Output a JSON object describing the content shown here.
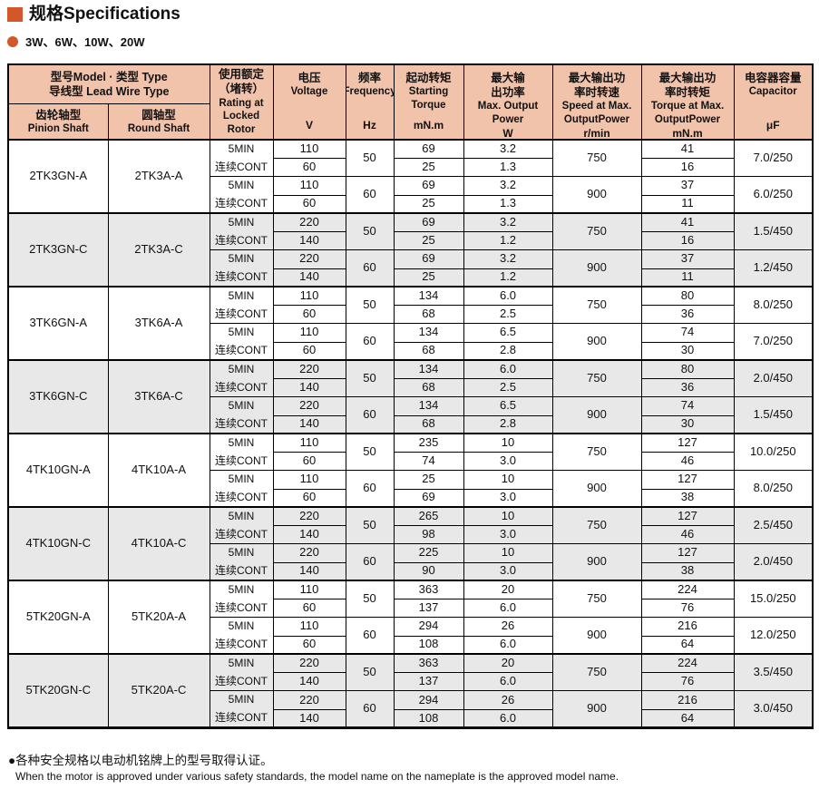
{
  "accent_color": "#d4572b",
  "header_bg_color": "#f2c3ab",
  "shaded_block_color": "#e8e8e8",
  "page": {
    "title_zh": "规格",
    "title_en": "Specifications",
    "wattages": "3W、6W、10W、20W"
  },
  "table": {
    "columns": {
      "model_group": {
        "line1": "型号Model · 类型 Type",
        "line2": "导线型 Lead Wire Type"
      },
      "pinion": {
        "zh": "齿轮轴型",
        "en": "Pinion Shaft"
      },
      "round": {
        "zh": "圆轴型",
        "en": "Round Shaft"
      },
      "rating": {
        "l1": "使用额定",
        "l2": "（堵转）",
        "l3": "Rating at",
        "l4": "Locked",
        "l5": "Rotor"
      },
      "voltage": {
        "zh": "电压",
        "en": "Voltage",
        "unit": "V"
      },
      "frequency": {
        "zh": "频率",
        "en": "Frequency",
        "unit": "Hz"
      },
      "starting_torque": {
        "zh": "起动转矩",
        "en1": "Starting",
        "en2": "Torque",
        "unit": "mN.m"
      },
      "max_output_power": {
        "zh1": "最大输",
        "zh2": "出功率",
        "en1": "Max. Output",
        "en2": "Power",
        "unit": "W"
      },
      "speed_at_max": {
        "zh1": "最大输出功",
        "zh2": "率时转速",
        "en1": "Speed at Max.",
        "en2": "OutputPower",
        "unit": "r/min"
      },
      "torque_at_max": {
        "zh1": "最大输出功",
        "zh2": "率时转矩",
        "en1": "Torque at Max.",
        "en2": "OutputPower",
        "unit": "mN.m"
      },
      "capacitor": {
        "zh": "电容器容量",
        "en": "Capacitor",
        "unit": "μF"
      }
    },
    "blocks": [
      {
        "pinion": "2TK3GN-A",
        "round": "2TK3A-A",
        "shaded": false,
        "halves": [
          {
            "rating": [
              "5MIN",
              "连续CONT"
            ],
            "frequency": "50",
            "speed": "750",
            "capacitor": "7.0/250",
            "rows": [
              {
                "voltage": "110",
                "starting_torque": "69",
                "max_output_power": "3.2",
                "torque_at_max": "41"
              },
              {
                "voltage": "60",
                "starting_torque": "25",
                "max_output_power": "1.3",
                "torque_at_max": "16"
              }
            ]
          },
          {
            "rating": [
              "5MIN",
              "连续CONT"
            ],
            "frequency": "60",
            "speed": "900",
            "capacitor": "6.0/250",
            "rows": [
              {
                "voltage": "110",
                "starting_torque": "69",
                "max_output_power": "3.2",
                "torque_at_max": "37"
              },
              {
                "voltage": "60",
                "starting_torque": "25",
                "max_output_power": "1.3",
                "torque_at_max": "11"
              }
            ]
          }
        ]
      },
      {
        "pinion": "2TK3GN-C",
        "round": "2TK3A-C",
        "shaded": true,
        "halves": [
          {
            "rating": [
              "5MIN",
              "连续CONT"
            ],
            "frequency": "50",
            "speed": "750",
            "capacitor": "1.5/450",
            "rows": [
              {
                "voltage": "220",
                "starting_torque": "69",
                "max_output_power": "3.2",
                "torque_at_max": "41"
              },
              {
                "voltage": "140",
                "starting_torque": "25",
                "max_output_power": "1.2",
                "torque_at_max": "16"
              }
            ]
          },
          {
            "rating": [
              "5MIN",
              "连续CONT"
            ],
            "frequency": "60",
            "speed": "900",
            "capacitor": "1.2/450",
            "rows": [
              {
                "voltage": "220",
                "starting_torque": "69",
                "max_output_power": "3.2",
                "torque_at_max": "37"
              },
              {
                "voltage": "140",
                "starting_torque": "25",
                "max_output_power": "1.2",
                "torque_at_max": "11"
              }
            ]
          }
        ]
      },
      {
        "pinion": "3TK6GN-A",
        "round": "3TK6A-A",
        "shaded": false,
        "halves": [
          {
            "rating": [
              "5MIN",
              "连续CONT"
            ],
            "frequency": "50",
            "speed": "750",
            "capacitor": "8.0/250",
            "rows": [
              {
                "voltage": "110",
                "starting_torque": "134",
                "max_output_power": "6.0",
                "torque_at_max": "80"
              },
              {
                "voltage": "60",
                "starting_torque": "68",
                "max_output_power": "2.5",
                "torque_at_max": "36"
              }
            ]
          },
          {
            "rating": [
              "5MIN",
              "连续CONT"
            ],
            "frequency": "60",
            "speed": "900",
            "capacitor": "7.0/250",
            "rows": [
              {
                "voltage": "110",
                "starting_torque": "134",
                "max_output_power": "6.5",
                "torque_at_max": "74"
              },
              {
                "voltage": "60",
                "starting_torque": "68",
                "max_output_power": "2.8",
                "torque_at_max": "30"
              }
            ]
          }
        ]
      },
      {
        "pinion": "3TK6GN-C",
        "round": "3TK6A-C",
        "shaded": true,
        "halves": [
          {
            "rating": [
              "5MIN",
              "连续CONT"
            ],
            "frequency": "50",
            "speed": "750",
            "capacitor": "2.0/450",
            "rows": [
              {
                "voltage": "220",
                "starting_torque": "134",
                "max_output_power": "6.0",
                "torque_at_max": "80"
              },
              {
                "voltage": "140",
                "starting_torque": "68",
                "max_output_power": "2.5",
                "torque_at_max": "36"
              }
            ]
          },
          {
            "rating": [
              "5MIN",
              "连续CONT"
            ],
            "frequency": "60",
            "speed": "900",
            "capacitor": "1.5/450",
            "rows": [
              {
                "voltage": "220",
                "starting_torque": "134",
                "max_output_power": "6.5",
                "torque_at_max": "74"
              },
              {
                "voltage": "140",
                "starting_torque": "68",
                "max_output_power": "2.8",
                "torque_at_max": "30"
              }
            ]
          }
        ]
      },
      {
        "pinion": "4TK10GN-A",
        "round": "4TK10A-A",
        "shaded": false,
        "halves": [
          {
            "rating": [
              "5MIN",
              "连续CONT"
            ],
            "frequency": "50",
            "speed": "750",
            "capacitor": "10.0/250",
            "rows": [
              {
                "voltage": "110",
                "starting_torque": "235",
                "max_output_power": "10",
                "torque_at_max": "127"
              },
              {
                "voltage": "60",
                "starting_torque": "74",
                "max_output_power": "3.0",
                "torque_at_max": "46"
              }
            ]
          },
          {
            "rating": [
              "5MIN",
              "连续CONT"
            ],
            "frequency": "60",
            "speed": "900",
            "capacitor": "8.0/250",
            "rows": [
              {
                "voltage": "110",
                "starting_torque": "25",
                "max_output_power": "10",
                "torque_at_max": "127"
              },
              {
                "voltage": "60",
                "starting_torque": "69",
                "max_output_power": "3.0",
                "torque_at_max": "38"
              }
            ]
          }
        ]
      },
      {
        "pinion": "4TK10GN-C",
        "round": "4TK10A-C",
        "shaded": true,
        "halves": [
          {
            "rating": [
              "5MIN",
              "连续CONT"
            ],
            "frequency": "50",
            "speed": "750",
            "capacitor": "2.5/450",
            "rows": [
              {
                "voltage": "220",
                "starting_torque": "265",
                "max_output_power": "10",
                "torque_at_max": "127"
              },
              {
                "voltage": "140",
                "starting_torque": "98",
                "max_output_power": "3.0",
                "torque_at_max": "46"
              }
            ]
          },
          {
            "rating": [
              "5MIN",
              "连续CONT"
            ],
            "frequency": "60",
            "speed": "900",
            "capacitor": "2.0/450",
            "rows": [
              {
                "voltage": "220",
                "starting_torque": "225",
                "max_output_power": "10",
                "torque_at_max": "127"
              },
              {
                "voltage": "140",
                "starting_torque": "90",
                "max_output_power": "3.0",
                "torque_at_max": "38"
              }
            ]
          }
        ]
      },
      {
        "pinion": "5TK20GN-A",
        "round": "5TK20A-A",
        "shaded": false,
        "halves": [
          {
            "rating": [
              "5MIN",
              "连续CONT"
            ],
            "frequency": "50",
            "speed": "750",
            "capacitor": "15.0/250",
            "rows": [
              {
                "voltage": "110",
                "starting_torque": "363",
                "max_output_power": "20",
                "torque_at_max": "224"
              },
              {
                "voltage": "60",
                "starting_torque": "137",
                "max_output_power": "6.0",
                "torque_at_max": "76"
              }
            ]
          },
          {
            "rating": [
              "5MIN",
              "连续CONT"
            ],
            "frequency": "60",
            "speed": "900",
            "capacitor": "12.0/250",
            "rows": [
              {
                "voltage": "110",
                "starting_torque": "294",
                "max_output_power": "26",
                "torque_at_max": "216"
              },
              {
                "voltage": "60",
                "starting_torque": "108",
                "max_output_power": "6.0",
                "torque_at_max": "64"
              }
            ]
          }
        ]
      },
      {
        "pinion": "5TK20GN-C",
        "round": "5TK20A-C",
        "shaded": true,
        "halves": [
          {
            "rating": [
              "5MIN",
              "连续CONT"
            ],
            "frequency": "50",
            "speed": "750",
            "capacitor": "3.5/450",
            "rows": [
              {
                "voltage": "220",
                "starting_torque": "363",
                "max_output_power": "20",
                "torque_at_max": "224"
              },
              {
                "voltage": "140",
                "starting_torque": "137",
                "max_output_power": "6.0",
                "torque_at_max": "76"
              }
            ]
          },
          {
            "rating": [
              "5MIN",
              "连续CONT"
            ],
            "frequency": "60",
            "speed": "900",
            "capacitor": "3.0/450",
            "rows": [
              {
                "voltage": "220",
                "starting_torque": "294",
                "max_output_power": "26",
                "torque_at_max": "216"
              },
              {
                "voltage": "140",
                "starting_torque": "108",
                "max_output_power": "6.0",
                "torque_at_max": "64"
              }
            ]
          }
        ]
      }
    ]
  },
  "footer": {
    "note_zh": "●各种安全规格以电动机铭牌上的型号取得认证。",
    "note_en": "When the motor is approved under various safety standards, the model name on the nameplate is the approved model name."
  }
}
